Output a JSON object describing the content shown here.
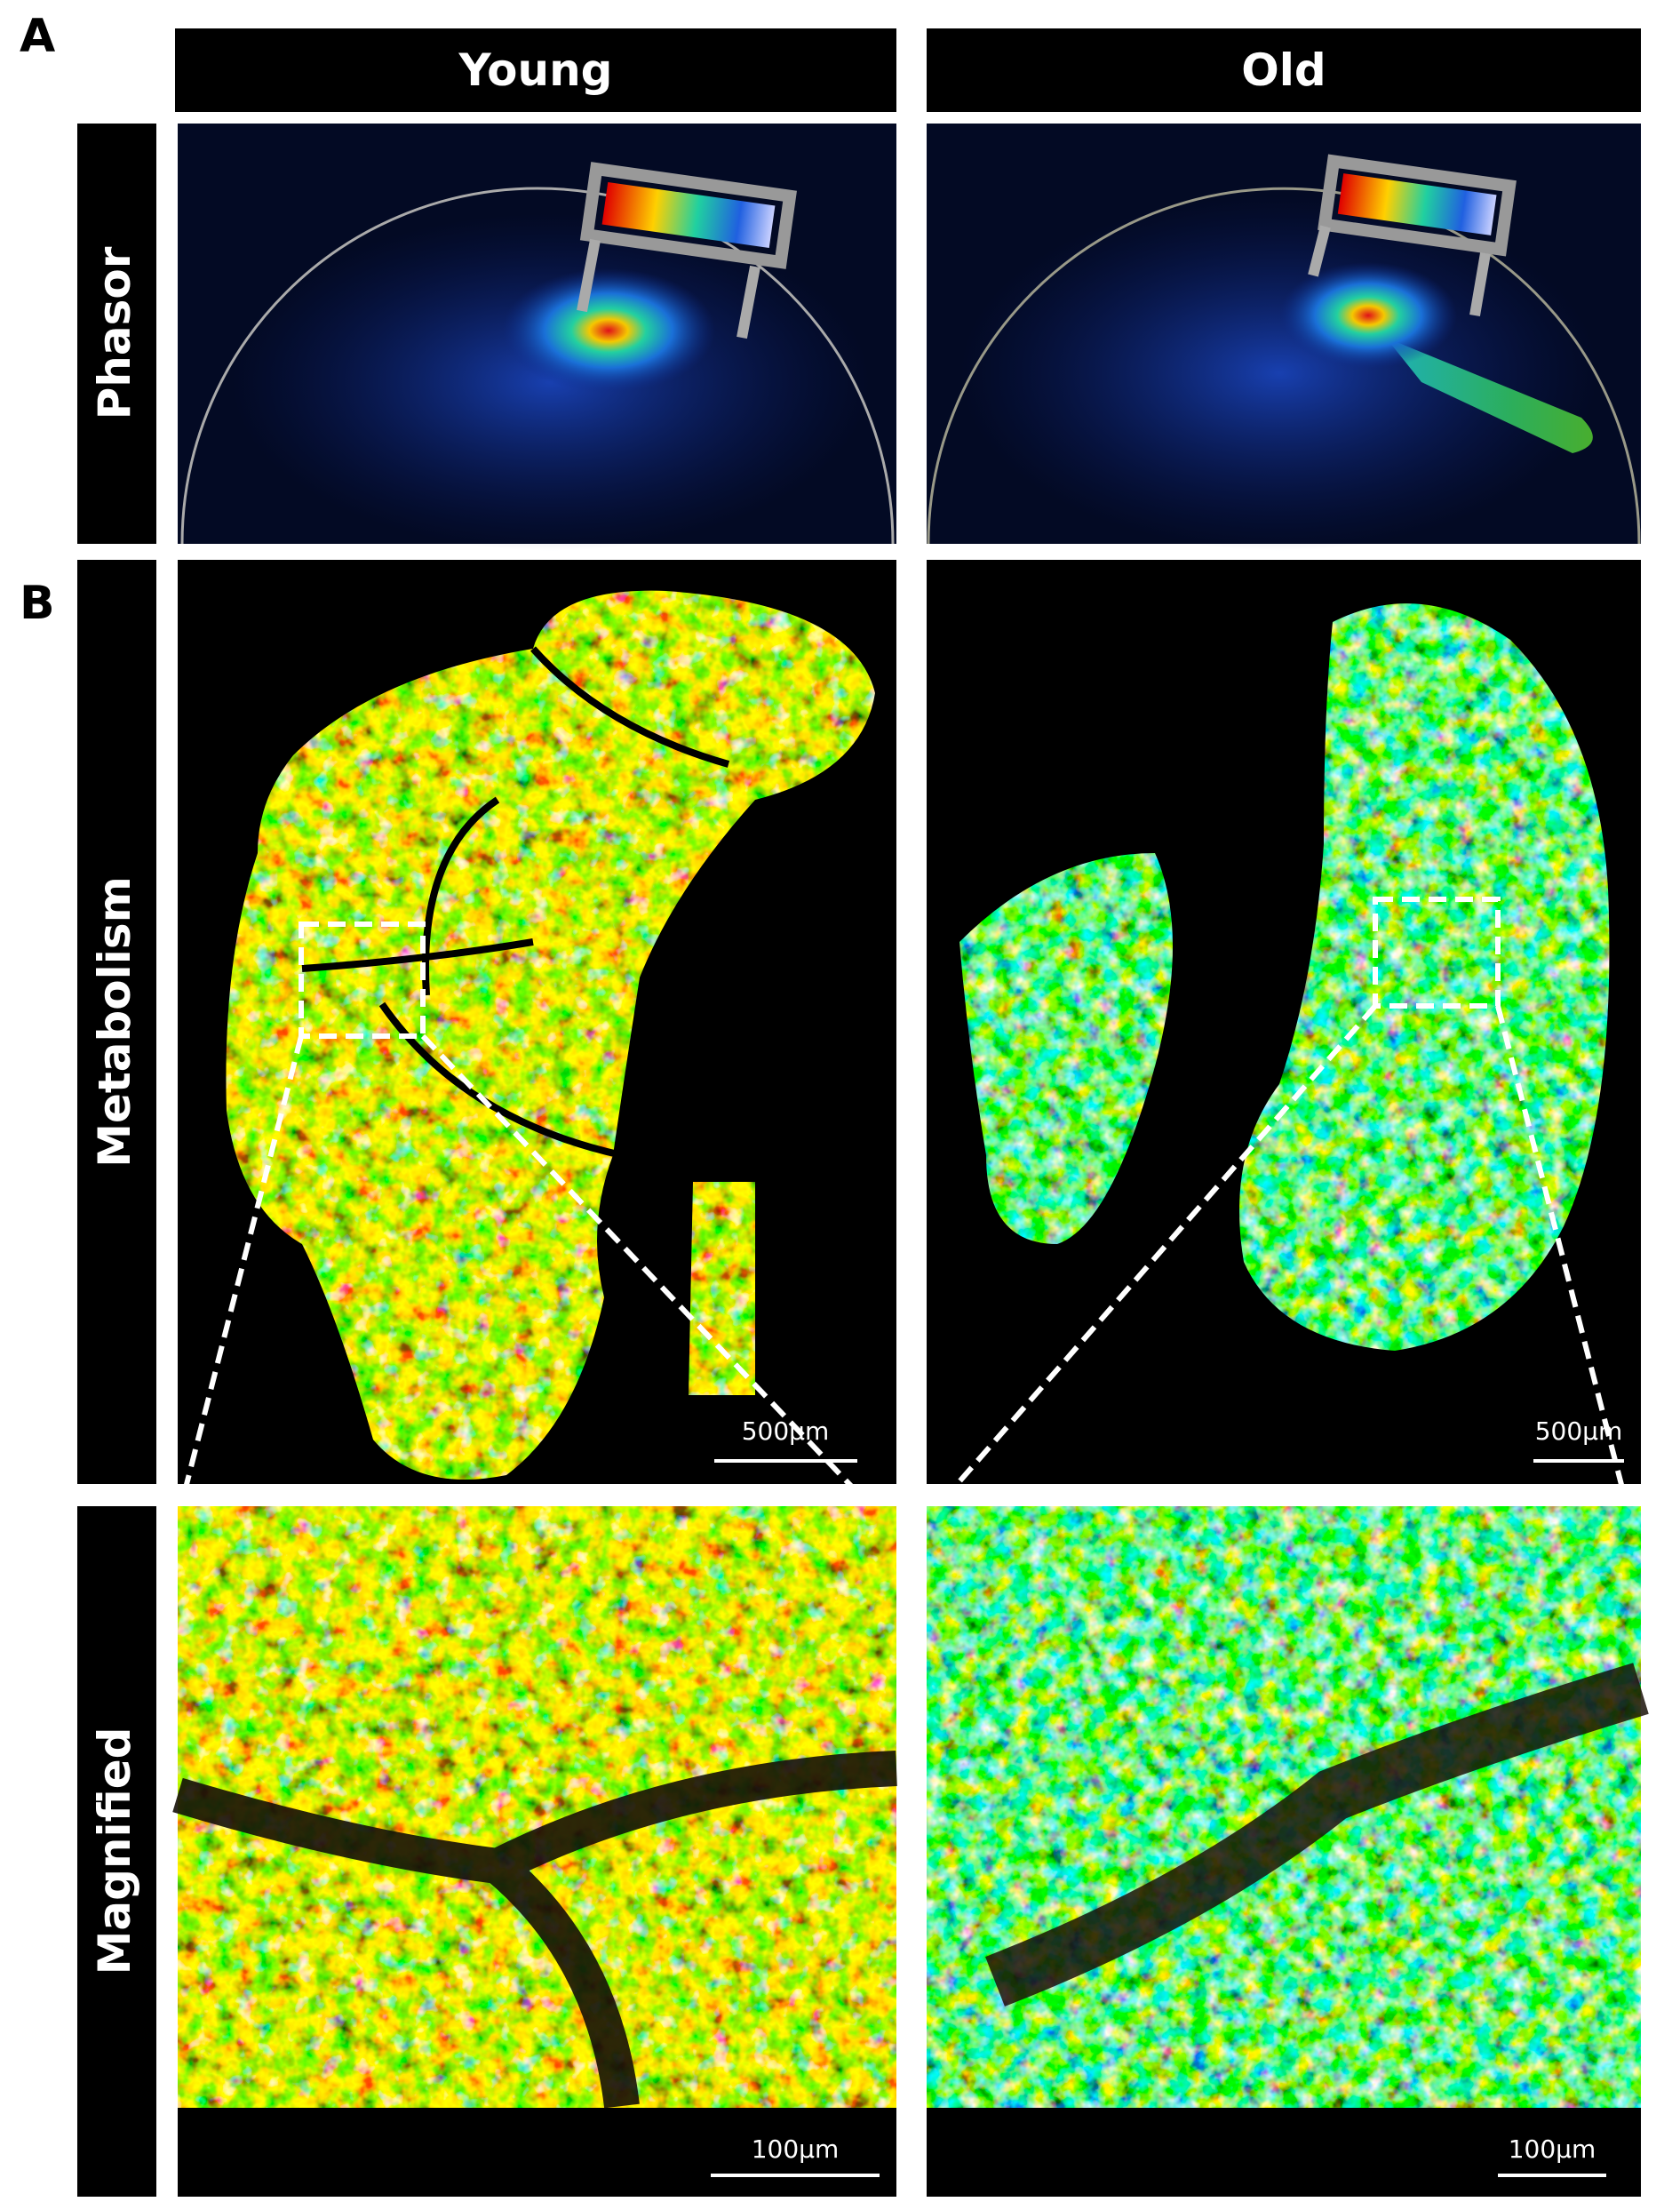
{
  "header": {
    "panel_a": "A",
    "panel_b": "B"
  },
  "columns": [
    "Young",
    "Old"
  ],
  "rows": [
    "Phasor",
    "Metabolism",
    "Magnified"
  ],
  "scale_bars": {
    "metabolism": "500µm",
    "magnified": "100µm"
  }
}
